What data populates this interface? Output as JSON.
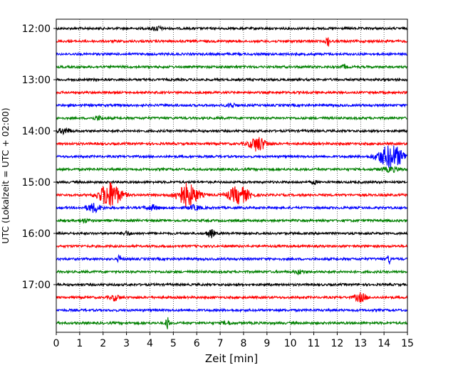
{
  "chart_data": {
    "type": "line",
    "title": "",
    "xlabel": "Zeit  [min]",
    "ylabel": "UTC (Lokalzeit = UTC + 02:00)",
    "xlim": [
      0,
      15
    ],
    "x_ticks": [
      "0",
      "1",
      "2",
      "3",
      "4",
      "5",
      "6",
      "7",
      "8",
      "9",
      "10",
      "11",
      "12",
      "13",
      "14",
      "15"
    ],
    "y_ticks": [
      "12:00",
      "13:00",
      "14:00",
      "15:00",
      "16:00",
      "17:00"
    ],
    "grid": "vertical dotted",
    "trace_interval_minutes": 15,
    "colors": [
      "#000000",
      "#ff0000",
      "#0000ff",
      "#008000"
    ],
    "series": [
      {
        "start": "12:00",
        "events": [
          {
            "t": 4.3,
            "amp": 3,
            "dur": 0.2
          }
        ]
      },
      {
        "start": "12:15",
        "events": [
          {
            "t": 11.6,
            "amp": 7,
            "dur": 0.08
          }
        ]
      },
      {
        "start": "12:30",
        "events": []
      },
      {
        "start": "12:45",
        "events": [
          {
            "t": 12.3,
            "amp": 3,
            "dur": 0.1
          }
        ]
      },
      {
        "start": "13:00",
        "events": []
      },
      {
        "start": "13:15",
        "events": []
      },
      {
        "start": "13:30",
        "events": [
          {
            "t": 7.5,
            "amp": 2.5,
            "dur": 0.2
          }
        ]
      },
      {
        "start": "13:45",
        "events": [
          {
            "t": 1.8,
            "amp": 2.5,
            "dur": 0.2
          }
        ]
      },
      {
        "start": "14:00",
        "events": [
          {
            "t": 0.35,
            "amp": 4,
            "dur": 0.25
          }
        ]
      },
      {
        "start": "14:15",
        "events": [
          {
            "t": 8.6,
            "amp": 10,
            "dur": 0.35
          }
        ]
      },
      {
        "start": "14:30",
        "events": [
          {
            "t": 14.3,
            "amp": 16,
            "dur": 0.55
          }
        ]
      },
      {
        "start": "14:45",
        "events": [
          {
            "t": 14.3,
            "amp": 3,
            "dur": 0.4
          }
        ]
      },
      {
        "start": "15:00",
        "events": [
          {
            "t": 11.0,
            "amp": 3,
            "dur": 0.1
          }
        ]
      },
      {
        "start": "15:15",
        "events": [
          {
            "t": 2.3,
            "amp": 18,
            "dur": 0.45
          },
          {
            "t": 5.6,
            "amp": 16,
            "dur": 0.45
          },
          {
            "t": 7.8,
            "amp": 12,
            "dur": 0.45
          }
        ]
      },
      {
        "start": "15:30",
        "events": [
          {
            "t": 1.6,
            "amp": 6,
            "dur": 0.3
          },
          {
            "t": 4.1,
            "amp": 3,
            "dur": 0.3
          },
          {
            "t": 5.9,
            "amp": 3,
            "dur": 0.3
          }
        ]
      },
      {
        "start": "15:45",
        "events": [
          {
            "t": 1.2,
            "amp": 2.5,
            "dur": 0.2
          }
        ]
      },
      {
        "start": "16:00",
        "events": [
          {
            "t": 6.6,
            "amp": 6,
            "dur": 0.15
          },
          {
            "t": 3.0,
            "amp": 2.5,
            "dur": 0.2
          }
        ]
      },
      {
        "start": "16:15",
        "events": []
      },
      {
        "start": "16:30",
        "events": [
          {
            "t": 2.7,
            "amp": 5,
            "dur": 0.08
          },
          {
            "t": 14.2,
            "amp": 9,
            "dur": 0.06
          }
        ]
      },
      {
        "start": "16:45",
        "events": [
          {
            "t": 10.4,
            "amp": 2.5,
            "dur": 0.2
          }
        ]
      },
      {
        "start": "17:00",
        "events": []
      },
      {
        "start": "17:15",
        "events": [
          {
            "t": 2.5,
            "amp": 4,
            "dur": 0.2
          },
          {
            "t": 13.0,
            "amp": 6,
            "dur": 0.25
          }
        ]
      },
      {
        "start": "17:30",
        "events": []
      },
      {
        "start": "17:45",
        "events": [
          {
            "t": 4.75,
            "amp": 12,
            "dur": 0.06
          },
          {
            "t": 7.3,
            "amp": 2,
            "dur": 0.2
          }
        ]
      }
    ]
  }
}
